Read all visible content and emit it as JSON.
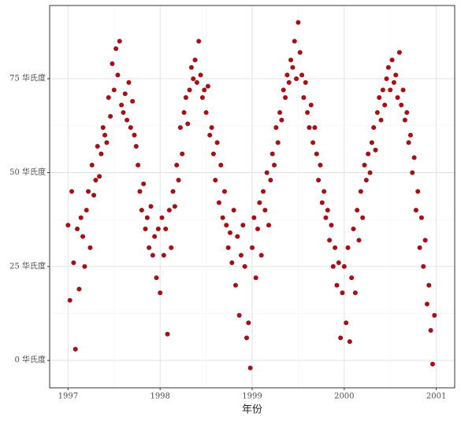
{
  "chart_data": {
    "type": "scatter",
    "x_label": "年份",
    "xlim": [
      1996.8,
      2001.2
    ],
    "xticks": [
      1997,
      1998,
      1999,
      2000,
      2001
    ],
    "ylim": [
      -7.3,
      94.5
    ],
    "yticks": [
      {
        "value": 0,
        "label": "0 华氏度"
      },
      {
        "value": 25,
        "label": "25 华氏度"
      },
      {
        "value": 50,
        "label": "50 华氏度"
      },
      {
        "value": 75,
        "label": "75 华氏度"
      }
    ],
    "grid": true,
    "color": "#a50f15",
    "x": [
      1997,
      1997.02,
      1997.04,
      1997.06,
      1997.08,
      1997.1,
      1997.12,
      1997.14,
      1997.16,
      1997.18,
      1997.2,
      1997.22,
      1997.24,
      1997.26,
      1997.28,
      1997.3,
      1997.32,
      1997.34,
      1997.36,
      1997.38,
      1997.4,
      1997.42,
      1997.44,
      1997.46,
      1997.48,
      1997.5,
      1997.52,
      1997.54,
      1997.56,
      1997.58,
      1997.6,
      1997.62,
      1997.64,
      1997.66,
      1997.68,
      1997.7,
      1997.72,
      1997.74,
      1997.76,
      1997.78,
      1997.8,
      1997.82,
      1997.84,
      1997.86,
      1997.88,
      1997.9,
      1997.92,
      1997.94,
      1997.96,
      1997.98,
      1998,
      1998.02,
      1998.04,
      1998.06,
      1998.08,
      1998.1,
      1998.12,
      1998.14,
      1998.16,
      1998.18,
      1998.2,
      1998.22,
      1998.24,
      1998.26,
      1998.28,
      1998.3,
      1998.32,
      1998.34,
      1998.36,
      1998.38,
      1998.4,
      1998.42,
      1998.44,
      1998.46,
      1998.48,
      1998.5,
      1998.52,
      1998.54,
      1998.56,
      1998.58,
      1998.6,
      1998.62,
      1998.64,
      1998.66,
      1998.68,
      1998.7,
      1998.72,
      1998.74,
      1998.76,
      1998.78,
      1998.8,
      1998.82,
      1998.84,
      1998.86,
      1998.88,
      1998.9,
      1998.92,
      1998.94,
      1998.96,
      1998.98,
      1999,
      1999.02,
      1999.04,
      1999.06,
      1999.08,
      1999.1,
      1999.12,
      1999.14,
      1999.16,
      1999.18,
      1999.2,
      1999.22,
      1999.24,
      1999.26,
      1999.28,
      1999.3,
      1999.32,
      1999.34,
      1999.36,
      1999.38,
      1999.4,
      1999.42,
      1999.44,
      1999.46,
      1999.48,
      1999.5,
      1999.52,
      1999.54,
      1999.56,
      1999.58,
      1999.6,
      1999.62,
      1999.64,
      1999.66,
      1999.68,
      1999.7,
      1999.72,
      1999.74,
      1999.76,
      1999.78,
      1999.8,
      1999.82,
      1999.84,
      1999.86,
      1999.88,
      1999.9,
      1999.92,
      1999.94,
      1999.96,
      1999.98,
      2000,
      2000.02,
      2000.04,
      2000.06,
      2000.08,
      2000.1,
      2000.12,
      2000.14,
      2000.16,
      2000.18,
      2000.2,
      2000.22,
      2000.24,
      2000.26,
      2000.28,
      2000.3,
      2000.32,
      2000.34,
      2000.36,
      2000.38,
      2000.4,
      2000.42,
      2000.44,
      2000.46,
      2000.48,
      2000.5,
      2000.52,
      2000.54,
      2000.56,
      2000.58,
      2000.6,
      2000.62,
      2000.64,
      2000.66,
      2000.68,
      2000.7,
      2000.72,
      2000.74,
      2000.76,
      2000.78,
      2000.8,
      2000.82,
      2000.84,
      2000.86,
      2000.88,
      2000.9,
      2000.92,
      2000.94,
      2000.96,
      2000.98
    ],
    "y": [
      36,
      16,
      45,
      26,
      3,
      35,
      19,
      38,
      33,
      25,
      40,
      45,
      30,
      52,
      44,
      48,
      57,
      49,
      55,
      62,
      60,
      58,
      70,
      65,
      79,
      72,
      83,
      76,
      85,
      68,
      66,
      71,
      64,
      74,
      62,
      69,
      60,
      57,
      52,
      45,
      40,
      47,
      35,
      38,
      30,
      41,
      28,
      33,
      22,
      35,
      18,
      38,
      28,
      35,
      7,
      40,
      30,
      45,
      41,
      52,
      48,
      62,
      55,
      66,
      70,
      63,
      72,
      78,
      75,
      80,
      74,
      85,
      76,
      70,
      72,
      66,
      73,
      60,
      62,
      55,
      48,
      58,
      42,
      52,
      38,
      45,
      36,
      30,
      34,
      26,
      40,
      20,
      33,
      12,
      28,
      36,
      25,
      6,
      10,
      -2,
      30,
      38,
      22,
      35,
      42,
      28,
      45,
      40,
      50,
      36,
      48,
      55,
      52,
      62,
      58,
      66,
      64,
      72,
      70,
      76,
      74,
      80,
      78,
      85,
      75,
      90,
      82,
      76,
      70,
      74,
      66,
      62,
      68,
      58,
      62,
      55,
      48,
      52,
      42,
      45,
      38,
      40,
      32,
      36,
      25,
      30,
      20,
      26,
      6,
      18,
      25,
      10,
      30,
      5,
      22,
      35,
      18,
      40,
      32,
      45,
      38,
      52,
      48,
      55,
      50,
      58,
      62,
      56,
      66,
      70,
      64,
      72,
      68,
      75,
      78,
      72,
      80,
      74,
      76,
      70,
      82,
      68,
      72,
      64,
      66,
      58,
      60,
      50,
      54,
      40,
      45,
      30,
      38,
      25,
      32,
      15,
      20,
      8,
      -1,
      12
    ]
  }
}
